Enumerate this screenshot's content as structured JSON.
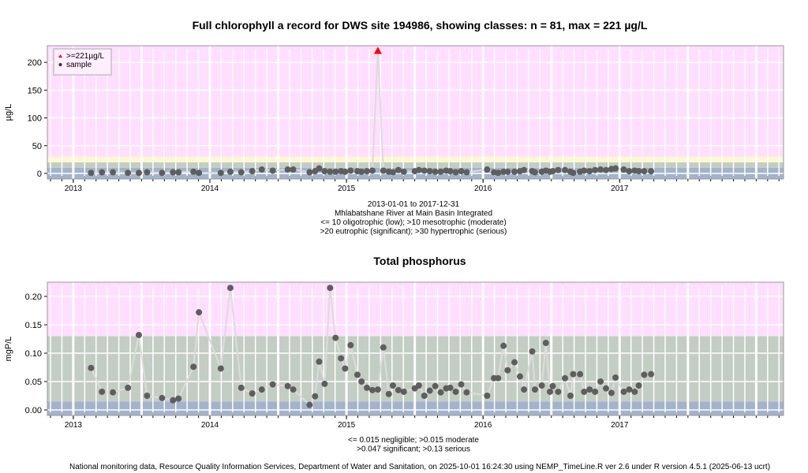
{
  "chart_data": [
    {
      "type": "line",
      "title": "Full chlorophyll a record for DWS site 194986, showing classes: n = 81, max = 221 µg/L",
      "ylabel": "µg/L",
      "xlabel": "",
      "xlim": [
        2012.81,
        2018.2
      ],
      "ylim": [
        -10,
        230
      ],
      "x_ticks": [
        2013,
        2014,
        2015,
        2016,
        2017
      ],
      "x_tick_labels": [
        "2013",
        "2014",
        "2015",
        "2016",
        "2017"
      ],
      "y_ticks": [
        0,
        50,
        100,
        150,
        200
      ],
      "y_tick_labels": [
        "0",
        "50",
        "100",
        "150",
        "200"
      ],
      "grid": true,
      "legend_position": "top-left",
      "legend": [
        {
          "label": ">=221µg/L",
          "symbol": "triangle",
          "color": "#ff0000"
        },
        {
          "label": "sample",
          "symbol": "dot",
          "color": "#333333"
        }
      ],
      "class_bands": [
        {
          "from": -10,
          "to": 10,
          "color": "#a3b3cb"
        },
        {
          "from": 10,
          "to": 20,
          "color": "#c3cdc3"
        },
        {
          "from": 20,
          "to": 30,
          "color": "#fdf8cf"
        },
        {
          "from": 30,
          "to": 230,
          "color": "#ffdeff"
        }
      ],
      "caption": [
        "2013-01-01 to 2017-12-31",
        "Mhlabatshane River at Main Basin Integrated",
        "<= 10 oligotrophic (low); >10 mesotrophic (moderate)",
        ">20 eutrophic (significant); >30 hypertrophic (serious)"
      ],
      "flag_threshold": 221,
      "x": [
        2013.13,
        2013.21,
        2013.29,
        2013.4,
        2013.48,
        2013.54,
        2013.65,
        2013.73,
        2013.77,
        2013.88,
        2013.92,
        2014.08,
        2014.15,
        2014.23,
        2014.31,
        2014.38,
        2014.46,
        2014.57,
        2014.61,
        2014.73,
        2014.77,
        2014.8,
        2014.84,
        2014.88,
        2014.92,
        2014.96,
        2014.99,
        2015.03,
        2015.08,
        2015.11,
        2015.15,
        2015.19,
        2015.23,
        2015.27,
        2015.31,
        2015.34,
        2015.38,
        2015.42,
        2015.5,
        2015.53,
        2015.57,
        2015.61,
        2015.65,
        2015.69,
        2015.73,
        2015.76,
        2015.8,
        2015.84,
        2015.88,
        2016.03,
        2016.08,
        2016.11,
        2016.15,
        2016.18,
        2016.23,
        2016.27,
        2016.3,
        2016.36,
        2016.38,
        2016.43,
        2016.46,
        2016.49,
        2016.51,
        2016.55,
        2016.6,
        2016.64,
        2016.66,
        2016.71,
        2016.74,
        2016.78,
        2016.82,
        2016.86,
        2016.9,
        2016.94,
        2016.97,
        2017.03,
        2017.07,
        2017.11,
        2017.14,
        2017.18,
        2017.23
      ],
      "y": [
        1,
        2,
        2,
        1,
        1,
        2,
        1,
        2,
        2,
        3,
        1,
        1,
        3,
        2,
        4,
        7,
        5,
        7,
        7,
        2,
        4,
        9,
        4,
        3,
        3,
        4,
        3,
        5,
        4,
        3,
        4,
        5,
        221,
        5,
        3,
        2,
        6,
        3,
        4,
        6,
        5,
        4,
        3,
        3,
        5,
        4,
        2,
        4,
        2,
        7,
        2,
        1,
        3,
        3,
        3,
        4,
        6,
        4,
        2,
        3,
        5,
        3,
        4,
        6,
        6,
        3,
        1,
        3,
        5,
        4,
        6,
        7,
        6,
        8,
        9,
        7,
        4,
        5,
        4,
        4,
        4
      ]
    },
    {
      "type": "line",
      "title": "Total phosphorus",
      "ylabel": "mgP/L",
      "xlabel": "",
      "xlim": [
        2012.81,
        2018.2
      ],
      "ylim": [
        -0.0097,
        0.225
      ],
      "x_ticks": [
        2013,
        2014,
        2015,
        2016,
        2017
      ],
      "x_tick_labels": [
        "2013",
        "2014",
        "2015",
        "2016",
        "2017"
      ],
      "y_ticks": [
        0,
        0.05,
        0.1,
        0.15,
        0.2
      ],
      "y_tick_labels": [
        "0.00",
        "0.05",
        "0.10",
        "0.15",
        "0.20"
      ],
      "grid": true,
      "class_bands": [
        {
          "from": -0.0097,
          "to": 0.015,
          "color": "#a3b3cb"
        },
        {
          "from": 0.015,
          "to": 0.13,
          "color": "#c3cdc3"
        },
        {
          "from": 0.13,
          "to": 0.225,
          "color": "#ffdeff"
        }
      ],
      "caption": [
        "<= 0.015 negligible; >0.015 moderate",
        ">0.047 significant; >0.13 serious"
      ],
      "x": [
        2013.13,
        2013.21,
        2013.29,
        2013.4,
        2013.48,
        2013.54,
        2013.65,
        2013.73,
        2013.77,
        2013.88,
        2013.92,
        2014.08,
        2014.15,
        2014.23,
        2014.31,
        2014.38,
        2014.46,
        2014.57,
        2014.61,
        2014.73,
        2014.77,
        2014.8,
        2014.84,
        2014.88,
        2014.92,
        2014.96,
        2014.99,
        2015.03,
        2015.08,
        2015.11,
        2015.15,
        2015.19,
        2015.23,
        2015.27,
        2015.31,
        2015.34,
        2015.38,
        2015.42,
        2015.5,
        2015.53,
        2015.57,
        2015.61,
        2015.65,
        2015.69,
        2015.73,
        2015.76,
        2015.8,
        2015.84,
        2015.88,
        2016.03,
        2016.08,
        2016.11,
        2016.15,
        2016.18,
        2016.23,
        2016.27,
        2016.3,
        2016.36,
        2016.38,
        2016.43,
        2016.46,
        2016.49,
        2016.51,
        2016.55,
        2016.6,
        2016.64,
        2016.66,
        2016.71,
        2016.74,
        2016.78,
        2016.82,
        2016.86,
        2016.9,
        2016.94,
        2016.97,
        2017.03,
        2017.07,
        2017.11,
        2017.14,
        2017.18,
        2017.23
      ],
      "y": [
        0.074,
        0.032,
        0.031,
        0.039,
        0.132,
        0.025,
        0.021,
        0.017,
        0.02,
        0.076,
        0.172,
        0.073,
        0.215,
        0.039,
        0.029,
        0.036,
        0.045,
        0.042,
        0.036,
        0.009,
        0.024,
        0.085,
        0.046,
        0.215,
        0.127,
        0.091,
        0.073,
        0.114,
        0.062,
        0.05,
        0.039,
        0.035,
        0.036,
        0.11,
        0.028,
        0.043,
        0.035,
        0.032,
        0.038,
        0.043,
        0.025,
        0.034,
        0.042,
        0.031,
        0.038,
        0.039,
        0.032,
        0.045,
        0.031,
        0.025,
        0.056,
        0.056,
        0.113,
        0.07,
        0.084,
        0.059,
        0.036,
        0.103,
        0.036,
        0.043,
        0.118,
        0.032,
        0.042,
        0.032,
        0.056,
        0.025,
        0.063,
        0.063,
        0.032,
        0.036,
        0.032,
        0.05,
        0.038,
        0.03,
        0.057,
        0.032,
        0.036,
        0.032,
        0.043,
        0.062,
        0.063
      ]
    }
  ],
  "footer": "National monitoring data, Resource Quality Information Services, Department of Water and Sanitation, on 2025-10-01 16:24:30 using NEMP_TimeLine.R ver 2.6 under R version 4.5.1 (2025-06-13 ucrt)"
}
